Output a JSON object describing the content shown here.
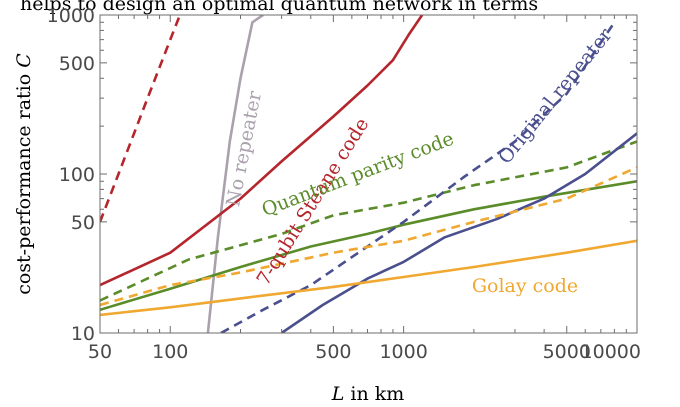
{
  "header_text": "helps to design an optimal quantum network in terms",
  "chart_data": {
    "type": "line",
    "xlabel": "L in km",
    "ylabel": "cost-performance ratio C",
    "xscale": "log",
    "yscale": "log",
    "xlim": [
      50,
      10000
    ],
    "ylim": [
      10,
      1000
    ],
    "xticks": [
      50,
      100,
      500,
      1000,
      5000,
      10000
    ],
    "xtick_labels": [
      "50",
      "100",
      "500",
      "1000",
      "5000",
      "10000"
    ],
    "yticks": [
      10,
      50,
      100,
      500,
      1000
    ],
    "ytick_labels": [
      "10",
      "50",
      "100",
      "500",
      "1000"
    ],
    "grid": false,
    "series": [
      {
        "name": "No repeater",
        "color": "#aaa1ad",
        "dash": "solid",
        "x": [
          145,
          160,
          180,
          200,
          225,
          250
        ],
        "y": [
          10,
          40,
          160,
          400,
          900,
          1000
        ]
      },
      {
        "name": "7-qubit Steane code",
        "color": "#b5252c",
        "dash": "solid",
        "x": [
          50,
          100,
          200,
          300,
          500,
          700,
          900,
          1050,
          1200
        ],
        "y": [
          20,
          32,
          70,
          120,
          230,
          360,
          520,
          750,
          1000
        ]
      },
      {
        "name": "",
        "color": "#b5252c",
        "dash": "dashed",
        "x": [
          50,
          60,
          80,
          100,
          110
        ],
        "y": [
          50,
          100,
          300,
          700,
          1000
        ]
      },
      {
        "name": "Quantum parity code",
        "color": "#5b8c2a",
        "dash": "dashed",
        "x": [
          50,
          120,
          300,
          500,
          1000,
          2000,
          5000,
          10000
        ],
        "y": [
          16,
          29,
          42,
          55,
          66,
          85,
          110,
          160
        ]
      },
      {
        "name": "",
        "color": "#5b8c2a",
        "dash": "solid",
        "x": [
          50,
          100,
          200,
          400,
          700,
          1000,
          2000,
          4000,
          10000
        ],
        "y": [
          14,
          19,
          26,
          35,
          42,
          48,
          60,
          72,
          90
        ]
      },
      {
        "name": "Original repeater",
        "color": "#4a4f8e",
        "dash": "dashed",
        "x": [
          165,
          250,
          400,
          600,
          1000,
          1800,
          3000,
          5000,
          8000
        ],
        "y": [
          10,
          14,
          20,
          30,
          50,
          95,
          160,
          320,
          900
        ]
      },
      {
        "name": "",
        "color": "#4a4f8e",
        "dash": "solid",
        "x": [
          300,
          450,
          700,
          1000,
          1500,
          2500,
          4000,
          6000,
          10000
        ],
        "y": [
          10,
          15,
          22,
          28,
          40,
          52,
          70,
          100,
          180
        ]
      },
      {
        "name": "",
        "color": "#f0a830",
        "dash": "dashed",
        "x": [
          50,
          100,
          200,
          500,
          1000,
          2000,
          5000,
          10000
        ],
        "y": [
          15,
          20,
          24,
          32,
          38,
          50,
          70,
          110
        ]
      },
      {
        "name": "Golay code",
        "color": "#f0a830",
        "dash": "solid",
        "x": [
          50,
          100,
          200,
          500,
          1000,
          2000,
          5000,
          10000
        ],
        "y": [
          13,
          14.5,
          16.5,
          19.5,
          22.5,
          26,
          32,
          38
        ]
      }
    ]
  }
}
